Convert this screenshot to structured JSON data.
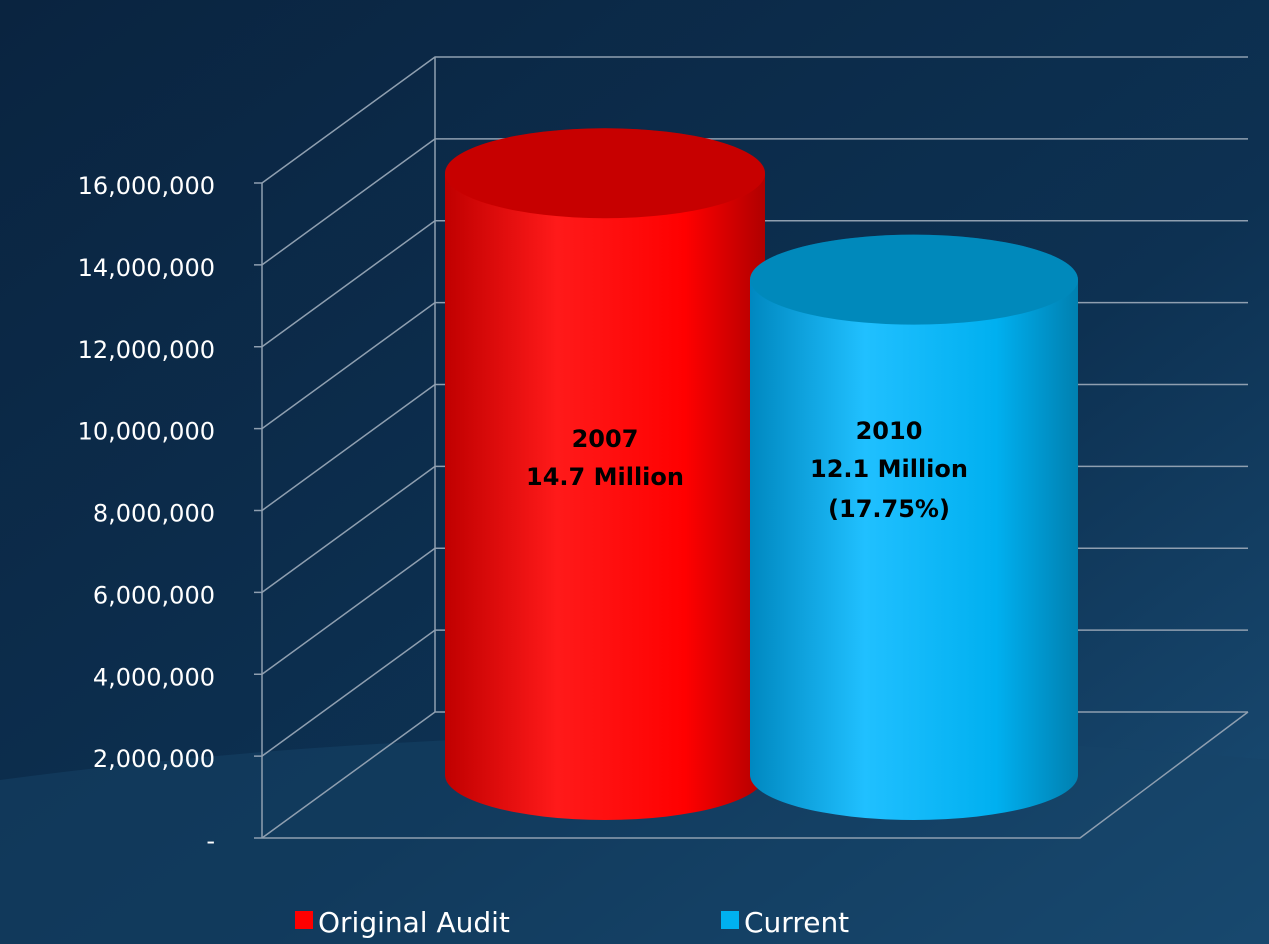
{
  "chart_data": {
    "type": "cylinder",
    "ylim": [
      0,
      16000000
    ],
    "yticks": [
      {
        "value": 0,
        "label": "-"
      },
      {
        "value": 2000000,
        "label": "2,000,000"
      },
      {
        "value": 4000000,
        "label": "4,000,000"
      },
      {
        "value": 6000000,
        "label": "6,000,000"
      },
      {
        "value": 8000000,
        "label": "8,000,000"
      },
      {
        "value": 10000000,
        "label": "10,000,000"
      },
      {
        "value": 12000000,
        "label": "12,000,000"
      },
      {
        "value": 14000000,
        "label": "14,000,000"
      },
      {
        "value": 16000000,
        "label": "16,000,000"
      }
    ],
    "grid": true,
    "legend": "bottom",
    "series": [
      {
        "name": "Original Audit",
        "color": "#ff0000",
        "values": [
          14700000
        ],
        "value_labels": [
          [
            "2007",
            "14.7 Million"
          ]
        ]
      },
      {
        "name": "Current",
        "color": "#00b0f0",
        "values": [
          12100000
        ],
        "value_labels": [
          [
            "2010",
            "12.1 Million",
            "(17.75%)"
          ]
        ]
      }
    ]
  }
}
